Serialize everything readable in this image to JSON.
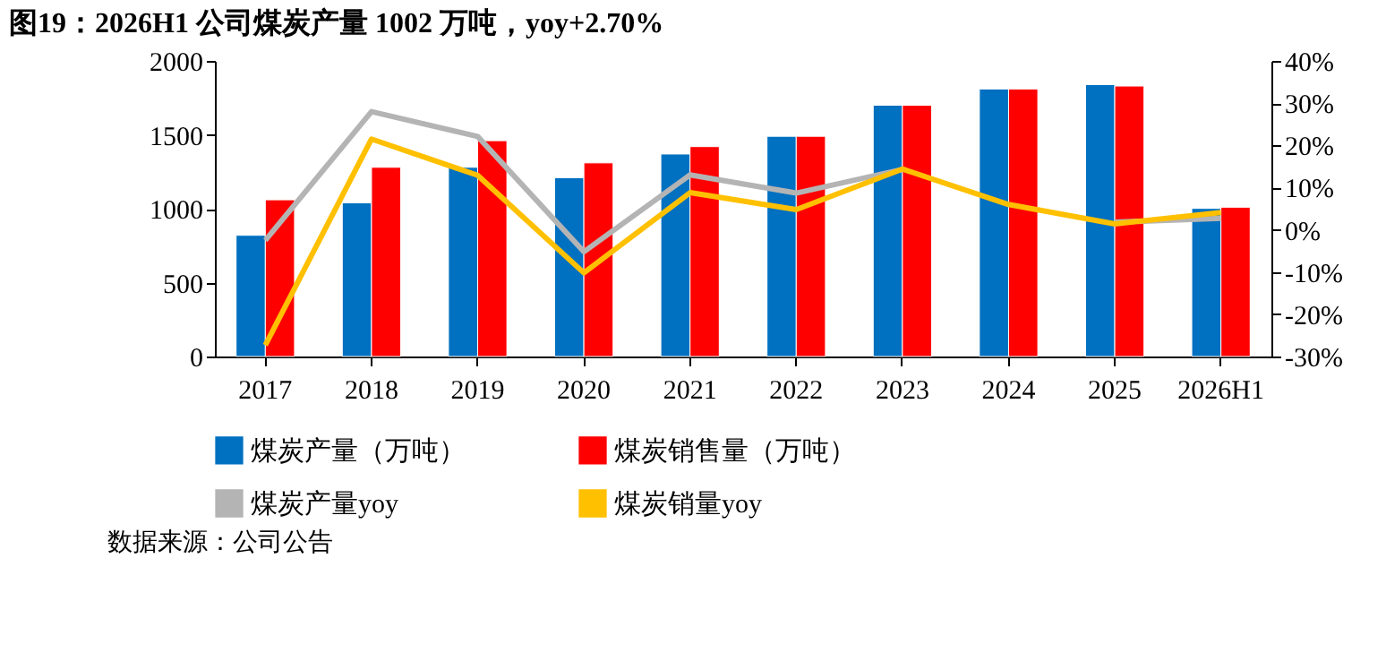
{
  "chart_data": {
    "type": "bar",
    "title": "图19：2026H1 公司煤炭产量 1002 万吨，yoy+2.70%",
    "categories": [
      "2017",
      "2018",
      "2019",
      "2020",
      "2021",
      "2022",
      "2023",
      "2024",
      "2025",
      "2026H1"
    ],
    "series": [
      {
        "name": "煤炭产量（万吨）",
        "color": "#0070c0",
        "values": [
          820,
          1040,
          1280,
          1210,
          1370,
          1490,
          1700,
          1810,
          1840,
          1002
        ]
      },
      {
        "name": "煤炭销售量（万吨）",
        "color": "#ff0000",
        "values": [
          1060,
          1280,
          1460,
          1310,
          1420,
          1490,
          1700,
          1810,
          1830,
          1010
        ]
      },
      {
        "name": "煤炭产量yoy",
        "color": "#b4b4b4",
        "type": "line",
        "axis": "y2",
        "values": [
          -2.5,
          28,
          22.1,
          -5.2,
          13,
          8.7,
          14.3,
          null,
          1.8,
          2.7
        ]
      },
      {
        "name": "煤炭销量yoy",
        "color": "#ffc000",
        "type": "line",
        "axis": "y2",
        "values": [
          -27.3,
          21.5,
          12.9,
          -10.2,
          8.8,
          4.8,
          14.4,
          6,
          1.4,
          4.1
        ]
      }
    ],
    "ylim": [
      0,
      2000
    ],
    "yticks": [
      0,
      500,
      1000,
      1500,
      2000
    ],
    "y2lim": [
      -30,
      40
    ],
    "y2ticks": [
      {
        "value": -30,
        "label": "-30%"
      },
      {
        "value": -20,
        "label": "-20%"
      },
      {
        "value": -10,
        "label": "-10%"
      },
      {
        "value": 0,
        "label": "0%"
      },
      {
        "value": 10,
        "label": "10%"
      },
      {
        "value": 20,
        "label": "20%"
      },
      {
        "value": 30,
        "label": "30%"
      },
      {
        "value": 40,
        "label": "40%"
      }
    ],
    "legend": "bottom",
    "grid": false,
    "marker": "none",
    "line_style": "solid",
    "annotations": [
      "数据来源：公司公告"
    ]
  }
}
